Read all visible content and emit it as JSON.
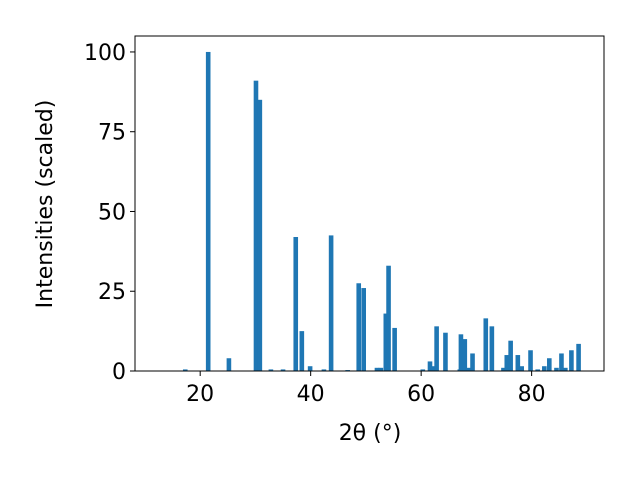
{
  "chart_data": {
    "type": "bar",
    "xlabel": "2θ (°)",
    "ylabel": "Intensities (scaled)",
    "x": [
      17.3,
      21.45,
      25.2,
      30.1,
      30.8,
      32.8,
      35.0,
      37.3,
      38.4,
      39.9,
      42.4,
      43.7,
      46.7,
      48.7,
      49.6,
      52.0,
      52.7,
      53.6,
      54.1,
      55.2,
      60.3,
      61.6,
      62.1,
      62.8,
      64.4,
      67.0,
      67.2,
      67.9,
      68.6,
      69.3,
      71.7,
      72.8,
      74.9,
      75.5,
      76.2,
      77.5,
      78.2,
      79.8,
      81.1,
      82.3,
      83.2,
      84.5,
      85.4,
      86.1,
      87.2,
      88.5
    ],
    "values": [
      0.5,
      100,
      4,
      91,
      85,
      0.5,
      0.5,
      42,
      12.5,
      1.5,
      0.5,
      42.5,
      0.3,
      27.5,
      26,
      1,
      1,
      18,
      33,
      13.5,
      0.5,
      3,
      1.5,
      14,
      12,
      0.5,
      11.5,
      10,
      1,
      5.5,
      16.5,
      14,
      1,
      5,
      9.5,
      5,
      1.5,
      6.5,
      0.5,
      1.5,
      4,
      1,
      5.5,
      1,
      6.5,
      8.5
    ],
    "color": "#1f77b4",
    "xlim": [
      8.2,
      93.1
    ],
    "xticks": [
      20,
      40,
      60,
      80
    ],
    "ylim": [
      0,
      105
    ],
    "yticks": [
      0,
      25,
      50,
      75,
      100
    ]
  }
}
